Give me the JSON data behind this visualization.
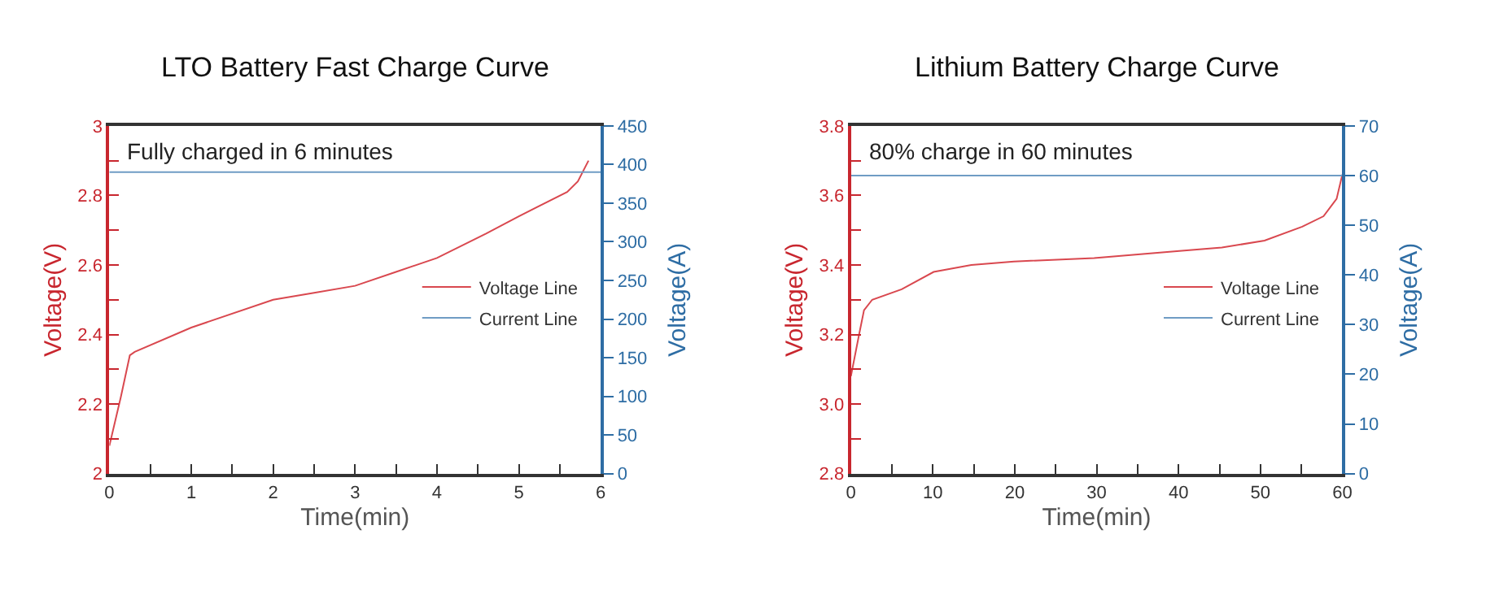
{
  "chart_data": [
    {
      "type": "line",
      "title": "LTO Battery Fast Charge Curve",
      "xlabel": "Time(min)",
      "ylabel": "Voltage(V)",
      "y2label": "Voltage(A)",
      "annotations": [
        "Fully charged in 6 minutes"
      ],
      "series": [
        {
          "name": "Voltage Line",
          "color": "#d9484f",
          "x": [
            0,
            0.14,
            0.25,
            0.31,
            1.0,
            2.0,
            2.5,
            3.0,
            3.5,
            4.0,
            4.6,
            5.0,
            5.59,
            5.72,
            5.85
          ],
          "values": [
            2.08,
            2.22,
            2.34,
            2.35,
            2.42,
            2.5,
            2.52,
            2.54,
            2.58,
            2.62,
            2.69,
            2.74,
            2.81,
            2.84,
            2.9
          ]
        },
        {
          "name": "Current Line",
          "color": "#6f9cc4",
          "axis": "y2",
          "x": [
            0,
            6
          ],
          "values": [
            390,
            390
          ]
        }
      ],
      "xlim": [
        0,
        6
      ],
      "xticks": [
        0,
        {
          "value": 0.5,
          "label": null
        },
        1,
        {
          "value": 1.5,
          "label": null
        },
        2,
        {
          "value": 2.5,
          "label": null
        },
        3,
        {
          "value": 3.5,
          "label": null
        },
        4,
        {
          "value": 4.5,
          "label": null
        },
        5,
        {
          "value": 5.5,
          "label": null
        },
        6
      ],
      "ylim": [
        2,
        3
      ],
      "yticks": [
        2,
        {
          "value": 2.1,
          "label": null
        },
        2.2,
        {
          "value": 2.3,
          "label": null
        },
        2.4,
        {
          "value": 2.5,
          "label": null
        },
        2.6,
        {
          "value": 2.7,
          "label": null
        },
        2.8,
        {
          "value": 2.9,
          "label": null
        },
        3
      ],
      "y2lim": [
        0,
        450
      ],
      "y2ticks": [
        0,
        50,
        100,
        150,
        200,
        250,
        300,
        350,
        400,
        450
      ],
      "legend": "right",
      "grid": false
    },
    {
      "type": "line",
      "title": "Lithium Battery Charge Curve",
      "xlabel": "Time(min)",
      "ylabel": "Voltage(V)",
      "y2label": "Voltage(A)",
      "annotations": [
        "80% charge in 60 minutes"
      ],
      "series": [
        {
          "name": "Voltage Line",
          "color": "#d9484f",
          "x": [
            0,
            1.0,
            1.6,
            2.6,
            6.2,
            10.1,
            14.7,
            19.9,
            29.7,
            40.1,
            45.3,
            50.5,
            55.1,
            57.7,
            59.3,
            60
          ],
          "values": [
            3.08,
            3.2,
            3.27,
            3.3,
            3.33,
            3.38,
            3.4,
            3.41,
            3.42,
            3.44,
            3.45,
            3.47,
            3.51,
            3.54,
            3.59,
            3.66
          ]
        },
        {
          "name": "Current Line",
          "color": "#6f9cc4",
          "axis": "y2",
          "x": [
            0,
            60
          ],
          "values": [
            60,
            60
          ]
        }
      ],
      "xlim": [
        0,
        60
      ],
      "xticks": [
        0,
        {
          "value": 5,
          "label": null
        },
        10,
        {
          "value": 15,
          "label": null
        },
        20,
        {
          "value": 25,
          "label": null
        },
        30,
        {
          "value": 35,
          "label": null
        },
        40,
        {
          "value": 45,
          "label": null
        },
        50,
        {
          "value": 55,
          "label": null
        },
        60
      ],
      "ylim": [
        2.8,
        3.8
      ],
      "yticks": [
        2.8,
        {
          "value": 2.9,
          "label": null
        },
        {
          "value": 3.0,
          "label": "3.0"
        },
        {
          "value": 3.1,
          "label": null
        },
        3.2,
        {
          "value": 3.3,
          "label": null
        },
        3.4,
        {
          "value": 3.5,
          "label": null
        },
        3.6,
        {
          "value": 3.7,
          "label": null
        },
        3.8
      ],
      "y2lim": [
        0,
        70
      ],
      "y2ticks": [
        0,
        10,
        20,
        30,
        40,
        50,
        60,
        70
      ],
      "legend": "right",
      "grid": false
    }
  ]
}
